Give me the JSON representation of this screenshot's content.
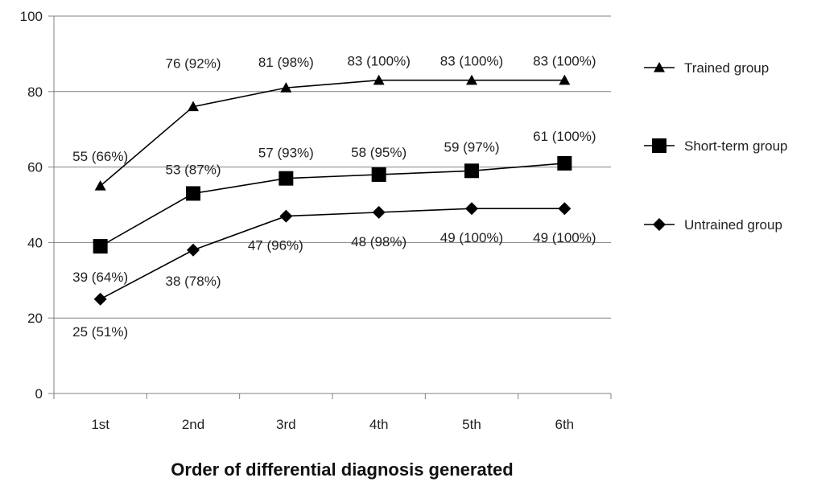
{
  "chart_data": {
    "type": "line",
    "title": "",
    "xlabel": "Order of differential diagnosis generated",
    "ylabel": "",
    "ylim": [
      0,
      100
    ],
    "yticks": [
      0,
      20,
      40,
      60,
      80,
      100
    ],
    "categories": [
      "1st",
      "2nd",
      "3rd",
      "4th",
      "5th",
      "6th"
    ],
    "grid": true,
    "legend_position": "right",
    "series": [
      {
        "name": "Trained group",
        "marker": "triangle",
        "values": [
          55,
          76,
          81,
          83,
          83,
          83
        ],
        "labels": [
          "55 (66%)",
          "76 (92%)",
          "81 (98%)",
          "83 (100%)",
          "83 (100%)",
          "83 (100%)"
        ]
      },
      {
        "name": "Short-term group",
        "marker": "square",
        "values": [
          39,
          53,
          57,
          58,
          59,
          61
        ],
        "labels": [
          "39 (64%)",
          "53 (87%)",
          "57 (93%)",
          "58 (95%)",
          "59 (97%)",
          "61 (100%)"
        ]
      },
      {
        "name": "Untrained group",
        "marker": "diamond",
        "values": [
          25,
          38,
          47,
          48,
          49,
          49
        ],
        "labels": [
          "25 (51%)",
          "38 (78%)",
          "47 (96%)",
          "48 (98%)",
          "49 (100%)",
          "49 (100%)"
        ]
      }
    ],
    "colors": {
      "line": "#000000",
      "grid": "#808080",
      "axis": "#808080"
    }
  }
}
